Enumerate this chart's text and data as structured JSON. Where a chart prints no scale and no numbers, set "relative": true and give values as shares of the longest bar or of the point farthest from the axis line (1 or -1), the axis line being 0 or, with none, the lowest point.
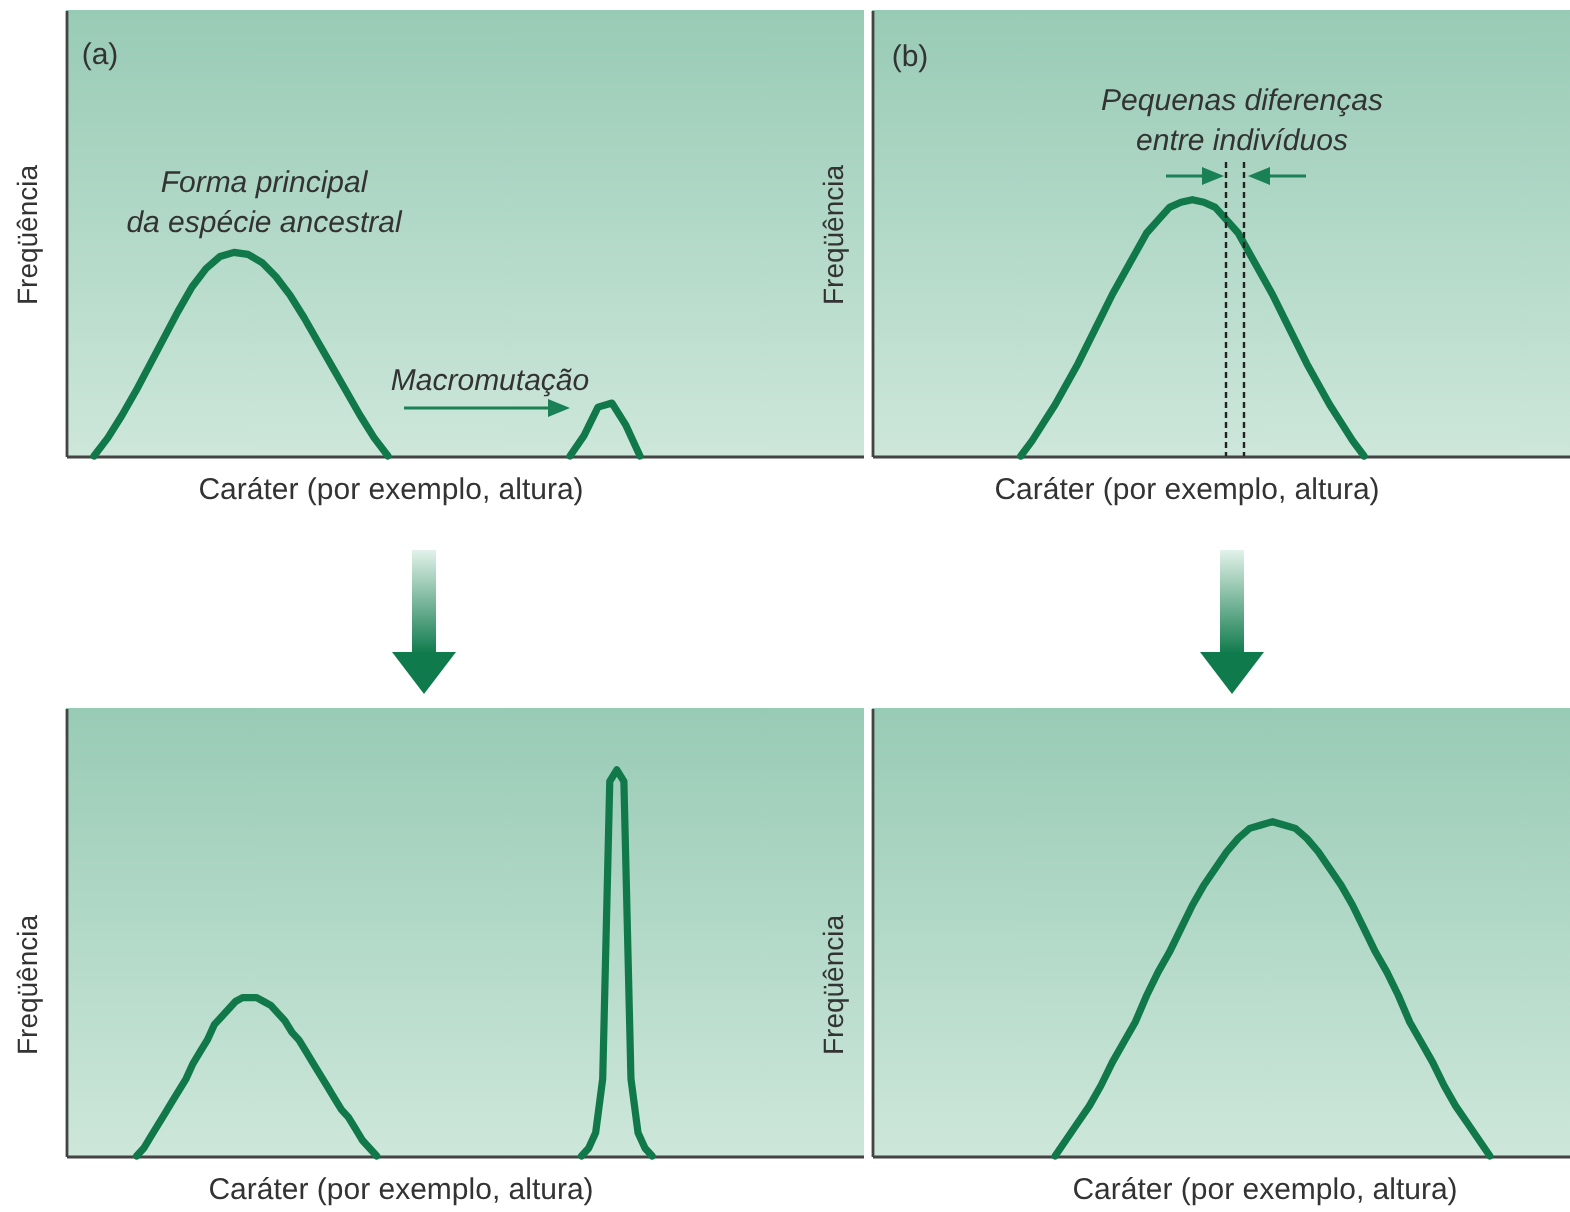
{
  "chart_data": [
    {
      "type": "line",
      "relative": true,
      "tick_labels": false,
      "xlabel": "Caráter (por exemplo, altura)",
      "ylabel": "Freqüência",
      "annotations": [
        "(a)",
        "Forma principal\nda espécie ancestral",
        "Macromutação"
      ],
      "categories": [
        null,
        null,
        null,
        null,
        null,
        null,
        null,
        null,
        null,
        null,
        null,
        null,
        null,
        null,
        null,
        null,
        null,
        null,
        null,
        null,
        null,
        null,
        null,
        null,
        null,
        null,
        null,
        null,
        null,
        null,
        null,
        null,
        null,
        null,
        null,
        null,
        null,
        null,
        null,
        null,
        null,
        null,
        null,
        null,
        null,
        null,
        null,
        null,
        null,
        null,
        null,
        null,
        null,
        null,
        null,
        null,
        null,
        null
      ],
      "series": [
        {
          "color": "#11784a",
          "values": [
            null,
            null,
            0,
            0.09,
            0.2,
            0.32,
            0.45,
            0.58,
            0.71,
            0.83,
            0.92,
            0.98,
            1,
            0.99,
            0.95,
            0.88,
            0.79,
            0.68,
            0.56,
            0.44,
            0.32,
            0.2,
            0.09,
            0,
            null,
            null,
            null,
            null,
            null,
            null,
            null,
            null,
            null,
            null,
            null,
            null,
            null,
            null,
            null,
            null,
            null,
            null,
            null,
            null,
            null,
            null,
            null,
            null,
            null,
            null,
            null,
            null,
            null,
            null,
            null,
            null,
            null,
            null
          ]
        },
        {
          "color": "#11784a",
          "values": [
            null,
            null,
            null,
            null,
            null,
            null,
            null,
            null,
            null,
            null,
            null,
            null,
            null,
            null,
            null,
            null,
            null,
            null,
            null,
            null,
            null,
            null,
            null,
            null,
            null,
            null,
            null,
            null,
            null,
            null,
            null,
            null,
            null,
            null,
            null,
            null,
            0,
            0.1,
            0.24,
            0.26,
            0.15,
            0,
            null,
            null,
            null,
            null,
            null,
            null,
            null,
            null,
            null,
            null,
            null,
            null,
            null,
            null,
            null,
            null
          ]
        }
      ]
    },
    {
      "type": "line",
      "relative": true,
      "tick_labels": false,
      "xlabel": "Caráter (por exemplo, altura)",
      "ylabel": "Freqüência",
      "annotations": [
        "(b)",
        "Pequenas diferenças\nentre indivíduos"
      ],
      "categories": [
        null,
        null,
        null,
        null,
        null,
        null,
        null,
        null,
        null,
        null,
        null,
        null,
        null,
        null,
        null,
        null,
        null,
        null,
        null,
        null,
        null,
        null,
        null,
        null,
        null,
        null,
        null,
        null,
        null,
        null,
        null,
        null,
        null,
        null,
        null,
        null,
        null,
        null,
        null,
        null,
        null,
        null,
        null,
        null,
        null,
        null,
        null,
        null,
        null,
        null,
        null,
        null,
        null,
        null,
        null,
        null,
        null,
        null,
        null,
        null,
        null,
        null
      ],
      "series": [
        {
          "color": "#11784a",
          "values": [
            null,
            null,
            null,
            null,
            null,
            null,
            null,
            null,
            null,
            null,
            null,
            null,
            null,
            0,
            0.06,
            0.13,
            0.2,
            0.28,
            0.36,
            0.45,
            0.54,
            0.63,
            0.71,
            0.79,
            0.87,
            0.92,
            0.97,
            0.99,
            1,
            0.99,
            0.97,
            0.92,
            0.87,
            0.79,
            0.71,
            0.63,
            0.54,
            0.45,
            0.36,
            0.28,
            0.2,
            0.13,
            0.06,
            0,
            null,
            null,
            null,
            null,
            null,
            null,
            null,
            null,
            null,
            null,
            null,
            null,
            null,
            null,
            null,
            null,
            null,
            null
          ]
        }
      ]
    },
    {
      "type": "line",
      "relative": true,
      "tick_labels": false,
      "xlabel": "Caráter (por exemplo, altura)",
      "ylabel": "Freqüência",
      "categories": [
        null,
        null,
        null,
        null,
        null,
        null,
        null,
        null,
        null,
        null,
        null,
        null,
        null,
        null,
        null,
        null,
        null,
        null,
        null,
        null,
        null,
        null,
        null,
        null,
        null,
        null,
        null,
        null,
        null,
        null,
        null,
        null,
        null,
        null,
        null,
        null,
        null,
        null,
        null,
        null,
        null,
        null,
        null,
        null,
        null,
        null,
        null,
        null,
        null,
        null,
        null,
        null,
        null,
        null,
        null,
        null,
        null,
        null,
        null,
        null,
        null,
        null,
        null,
        null,
        null,
        null,
        null,
        null,
        null,
        null,
        null,
        null,
        null,
        null,
        null,
        null,
        null,
        null,
        null,
        null,
        null,
        null,
        null,
        null,
        null,
        null,
        null,
        null,
        null,
        null,
        null,
        null,
        null,
        null,
        null,
        null,
        null,
        null,
        null,
        null,
        null,
        null,
        null,
        null,
        null,
        null,
        null,
        null,
        null,
        null,
        null,
        null,
        null,
        null
      ],
      "series": [
        {
          "color": "#11784a",
          "values": [
            null,
            null,
            null,
            null,
            null,
            null,
            null,
            null,
            null,
            null,
            0,
            0.02,
            0.05,
            0.08,
            0.11,
            0.14,
            0.17,
            0.2,
            0.24,
            0.27,
            0.3,
            0.34,
            0.36,
            0.38,
            0.4,
            0.41,
            0.41,
            0.41,
            0.4,
            0.39,
            0.37,
            0.35,
            0.32,
            0.3,
            0.27,
            0.24,
            0.21,
            0.18,
            0.15,
            0.12,
            0.1,
            0.07,
            0.04,
            0.02,
            0,
            null,
            null,
            null,
            null,
            null,
            null,
            null,
            null,
            null,
            null,
            null,
            null,
            null,
            null,
            null,
            null,
            null,
            null,
            null,
            null,
            null,
            null,
            null,
            null,
            null,
            null,
            null,
            null,
            null,
            null,
            null,
            null,
            null,
            null,
            null,
            null,
            null,
            null,
            null,
            null,
            null,
            null,
            null,
            null,
            null,
            null,
            null,
            null,
            null,
            null,
            null,
            null,
            null,
            null,
            null,
            null,
            null,
            null,
            null,
            null,
            null,
            null,
            null,
            null,
            null,
            null,
            null,
            null,
            null
          ]
        },
        {
          "color": "#11784a",
          "values": [
            null,
            null,
            null,
            null,
            null,
            null,
            null,
            null,
            null,
            null,
            null,
            null,
            null,
            null,
            null,
            null,
            null,
            null,
            null,
            null,
            null,
            null,
            null,
            null,
            null,
            null,
            null,
            null,
            null,
            null,
            null,
            null,
            null,
            null,
            null,
            null,
            null,
            null,
            null,
            null,
            null,
            null,
            null,
            null,
            null,
            null,
            null,
            null,
            null,
            null,
            null,
            null,
            null,
            null,
            null,
            null,
            null,
            null,
            null,
            null,
            null,
            null,
            null,
            null,
            null,
            null,
            null,
            null,
            null,
            null,
            null,
            null,
            null,
            0,
            0.02,
            0.06,
            0.2,
            0.97,
            1,
            0.97,
            0.2,
            0.06,
            0.02,
            0,
            null,
            null,
            null,
            null,
            null,
            null,
            null,
            null,
            null,
            null,
            null,
            null,
            null,
            null,
            null,
            null,
            null,
            null,
            null,
            null,
            null,
            null,
            null,
            null,
            null,
            null,
            null,
            null,
            null,
            null
          ]
        }
      ]
    },
    {
      "type": "line",
      "relative": true,
      "tick_labels": false,
      "xlabel": "Caráter (por exemplo, altura)",
      "ylabel": "Freqüência",
      "categories": [
        null,
        null,
        null,
        null,
        null,
        null,
        null,
        null,
        null,
        null,
        null,
        null,
        null,
        null,
        null,
        null,
        null,
        null,
        null,
        null,
        null,
        null,
        null,
        null,
        null,
        null,
        null,
        null,
        null,
        null,
        null,
        null,
        null,
        null,
        null,
        null,
        null,
        null,
        null,
        null,
        null,
        null,
        null,
        null,
        null,
        null,
        null,
        null,
        null,
        null,
        null,
        null,
        null,
        null,
        null,
        null,
        null,
        null,
        null,
        null,
        null,
        null
      ],
      "series": [
        {
          "color": "#11784a",
          "values": [
            null,
            null,
            null,
            null,
            null,
            null,
            null,
            null,
            null,
            null,
            null,
            null,
            null,
            null,
            null,
            null,
            0,
            0.05,
            0.1,
            0.15,
            0.21,
            0.28,
            0.34,
            0.4,
            0.48,
            0.55,
            0.61,
            0.68,
            0.75,
            0.81,
            0.86,
            0.91,
            0.95,
            0.98,
            0.99,
            1,
            0.99,
            0.98,
            0.95,
            0.91,
            0.86,
            0.81,
            0.75,
            0.68,
            0.61,
            0.55,
            0.48,
            0.4,
            0.34,
            0.28,
            0.21,
            0.15,
            0.1,
            0.05,
            0,
            null,
            null,
            null,
            null,
            null,
            null,
            null
          ]
        }
      ]
    }
  ]
}
